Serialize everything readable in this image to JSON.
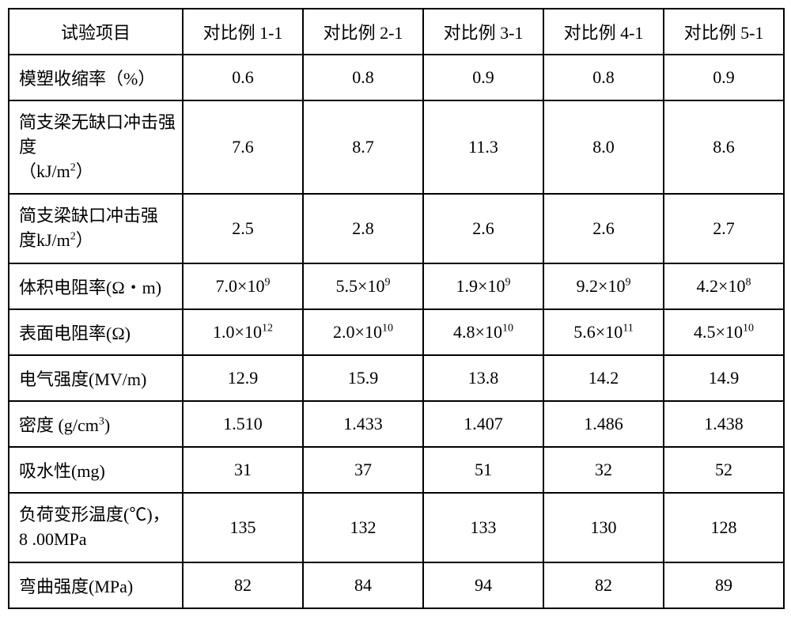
{
  "table": {
    "type": "table",
    "background_color": "#ffffff",
    "border_color": "#000000",
    "text_color": "#000000",
    "font_family": "SimSun",
    "header_fontsize": 22,
    "cell_fontsize": 22,
    "border_width": 2,
    "columns": {
      "label_width": 220,
      "data_width": 152,
      "headers": [
        "试验项目",
        "对比例 1-1",
        "对比例 2-1",
        "对比例 3-1",
        "对比例 4-1",
        "对比例 5-1"
      ]
    },
    "rows": [
      {
        "label_html": "模塑收缩率（%）",
        "cells": [
          "0.6",
          "0.8",
          "0.9",
          "0.8",
          "0.9"
        ]
      },
      {
        "label_html": "简支梁无缺口冲击强度<br>（kJ/m<sup>2</sup>）",
        "cells": [
          "7.6",
          "8.7",
          "11.3",
          "8.0",
          "8.6"
        ],
        "multiline": true
      },
      {
        "label_html": "简支梁缺口冲击强<br>度kJ/m<sup>2</sup>）",
        "cells": [
          "2.5",
          "2.8",
          "2.6",
          "2.6",
          "2.7"
        ],
        "multiline": true
      },
      {
        "label_html": "体积电阻率(Ω・m)",
        "cells_html": [
          "7.0×10<sup>9</sup>",
          "5.5×10<sup>9</sup>",
          "1.9×10<sup>9</sup>",
          "9.2×10<sup>9</sup>",
          "4.2×10<sup>8</sup>"
        ]
      },
      {
        "label_html": "表面电阻率(Ω)",
        "cells_html": [
          "1.0×10<sup>12</sup>",
          "2.0×10<sup>10</sup>",
          "4.8×10<sup>10</sup>",
          "5.6×10<sup>11</sup>",
          "4.5×10<sup>10</sup>"
        ]
      },
      {
        "label_html": "电气强度(MV/m)",
        "cells": [
          "12.9",
          "15.9",
          "13.8",
          "14.2",
          "14.9"
        ]
      },
      {
        "label_html": "密度 (g/cm<sup>3</sup>)",
        "cells": [
          "1.510",
          "1.433",
          "1.407",
          "1.486",
          "1.438"
        ]
      },
      {
        "label_html": "吸水性(mg)",
        "cells": [
          "31",
          "37",
          "51",
          "32",
          "52"
        ]
      },
      {
        "label_html": "负荷变形温度(℃)，<br>8 .00MPa",
        "cells": [
          "135",
          "132",
          "133",
          "130",
          "128"
        ],
        "multiline": true
      },
      {
        "label_html": "弯曲强度(MPa)",
        "cells": [
          "82",
          "84",
          "94",
          "82",
          "89"
        ]
      }
    ]
  }
}
